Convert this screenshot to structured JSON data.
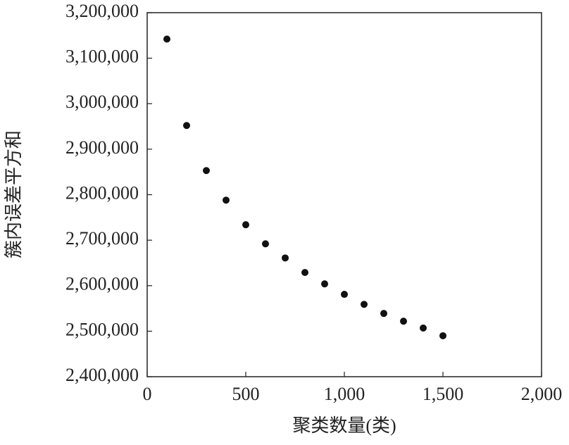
{
  "chart_data": {
    "type": "scatter",
    "x_label": "聚类数量(类)",
    "y_label": "簇内误差平方和",
    "x": [
      100,
      200,
      300,
      400,
      500,
      600,
      700,
      800,
      900,
      1000,
      1100,
      1200,
      1300,
      1400,
      1500
    ],
    "values": [
      3142000,
      2952000,
      2853000,
      2788000,
      2734000,
      2692000,
      2661000,
      2629000,
      2604000,
      2581000,
      2559000,
      2539000,
      2522000,
      2507000,
      2490000
    ],
    "color": "#111111",
    "xlim": [
      0,
      2000
    ],
    "xticks": [
      0,
      500,
      {
        "value": 1000,
        "label": "1,000"
      },
      {
        "value": 1500,
        "label": "1,500"
      },
      {
        "value": 2000,
        "label": "2,000"
      }
    ],
    "ylim": [
      2400000,
      3200000
    ],
    "yticks": [
      {
        "value": 2400000,
        "label": "2,400,000"
      },
      {
        "value": 2500000,
        "label": "2,500,000"
      },
      {
        "value": 2600000,
        "label": "2,600,000"
      },
      {
        "value": 2700000,
        "label": "2,700,000"
      },
      {
        "value": 2800000,
        "label": "2,800,000"
      },
      {
        "value": 2900000,
        "label": "2,900,000"
      },
      {
        "value": 3000000,
        "label": "3,000,000"
      },
      {
        "value": 3100000,
        "label": "3,100,000"
      },
      {
        "value": 3200000,
        "label": "3,200,000"
      }
    ],
    "grid": false
  }
}
